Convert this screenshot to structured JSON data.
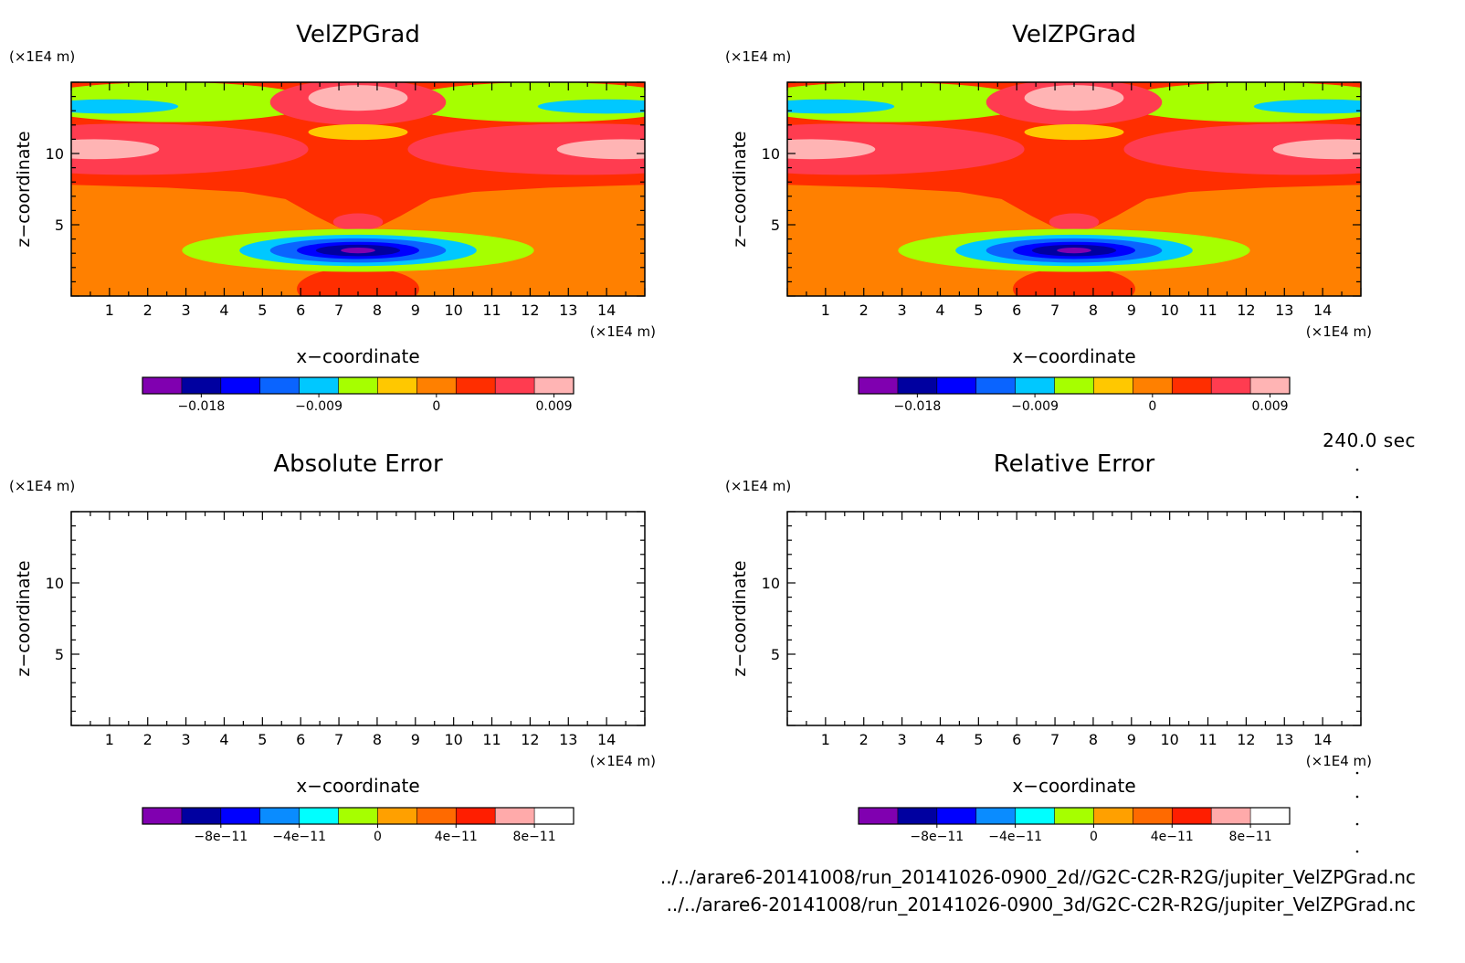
{
  "time_label": "240.0 sec",
  "files": [
    "../../arare6-20141008/run_20141026-0900_2d//G2C-C2R-R2G/jupiter_VelZPGrad.nc",
    "../../arare6-20141008/run_20141026-0900_3d/G2C-C2R-R2G/jupiter_VelZPGrad.nc"
  ],
  "chart_data": [
    {
      "type": "heatmap",
      "title": "VelZPGrad",
      "xlabel": "x−coordinate",
      "ylabel": "z−coordinate",
      "x_unit": "(×1E4 m)",
      "y_unit": "(×1E4 m)",
      "xlim": [
        0,
        15
      ],
      "ylim": [
        0,
        15
      ],
      "x_ticks": [
        1,
        2,
        3,
        4,
        5,
        6,
        7,
        8,
        9,
        10,
        11,
        12,
        13,
        14
      ],
      "y_ticks": [
        5,
        10
      ],
      "colorbar": {
        "levels": [
          -0.0225,
          -0.0195,
          -0.0165,
          -0.0135,
          -0.0105,
          -0.0075,
          -0.0045,
          -0.0015,
          0.0015,
          0.0045,
          0.0075,
          0.0105
        ],
        "tick_values": [
          -0.018,
          -0.009,
          0,
          0.009
        ],
        "tick_labels": [
          "−0.018",
          "−0.009",
          "0",
          "0.009"
        ],
        "colors": [
          "#8000b0",
          "#0000a0",
          "#0000ff",
          "#0a64ff",
          "#00c8ff",
          "#a6ff00",
          "#ffc800",
          "#ff8000",
          "#ff2e00",
          "#ff3c50",
          "#ffb4b4"
        ]
      },
      "contours": [
        {
          "shape": "rect",
          "x": [
            0,
            15
          ],
          "z": [
            0,
            15
          ],
          "value": 0
        },
        {
          "shape": "poly",
          "points": [
            [
              0,
              15
            ],
            [
              0,
              7.8
            ],
            [
              2.5,
              7.6
            ],
            [
              4.5,
              7.3
            ],
            [
              5.6,
              6.8
            ],
            [
              6.4,
              5.6
            ],
            [
              7,
              4.8
            ],
            [
              7.5,
              4.6
            ],
            [
              8,
              4.8
            ],
            [
              8.6,
              5.6
            ],
            [
              9.4,
              6.8
            ],
            [
              10.5,
              7.3
            ],
            [
              12.5,
              7.6
            ],
            [
              15,
              7.8
            ],
            [
              15,
              15
            ]
          ],
          "value": 0.003
        },
        {
          "shape": "ellipse",
          "cx": 7.5,
          "cz": 0.5,
          "rx": 1.6,
          "rz": 1.5,
          "value": 0.003
        },
        {
          "shape": "ellipse",
          "cx": 2.6,
          "cz": 13.6,
          "rx": 3.8,
          "rz": 1.4,
          "value": -0.006
        },
        {
          "shape": "ellipse",
          "cx": 12.4,
          "cz": 13.6,
          "rx": 3.8,
          "rz": 1.4,
          "value": -0.006
        },
        {
          "shape": "ellipse",
          "cx": 1.0,
          "cz": 13.3,
          "rx": 1.8,
          "rz": 0.5,
          "value": -0.009
        },
        {
          "shape": "ellipse",
          "cx": 14.0,
          "cz": 13.3,
          "rx": 1.8,
          "rz": 0.5,
          "value": -0.009
        },
        {
          "shape": "ellipse",
          "cx": 1.6,
          "cz": 10.3,
          "rx": 4.6,
          "rz": 1.8,
          "value": 0.006
        },
        {
          "shape": "ellipse",
          "cx": 13.4,
          "cz": 10.3,
          "rx": 4.6,
          "rz": 1.8,
          "value": 0.006
        },
        {
          "shape": "ellipse",
          "cx": 0.6,
          "cz": 10.3,
          "rx": 1.7,
          "rz": 0.7,
          "value": 0.009
        },
        {
          "shape": "ellipse",
          "cx": 14.4,
          "cz": 10.3,
          "rx": 1.7,
          "rz": 0.7,
          "value": 0.009
        },
        {
          "shape": "ellipse",
          "cx": 7.5,
          "cz": 13.6,
          "rx": 2.3,
          "rz": 1.6,
          "value": 0.006
        },
        {
          "shape": "ellipse",
          "cx": 7.5,
          "cz": 13.9,
          "rx": 1.3,
          "rz": 0.9,
          "value": 0.009
        },
        {
          "shape": "ellipse",
          "cx": 7.5,
          "cz": 14.0,
          "rx": 0.45,
          "rz": 0.25,
          "value": 0.012
        },
        {
          "shape": "ellipse",
          "cx": 7.5,
          "cz": 11.5,
          "rx": 1.3,
          "rz": 0.55,
          "value": -0.003
        },
        {
          "shape": "ellipse",
          "cx": 7.5,
          "cz": 5.2,
          "rx": 0.65,
          "rz": 0.6,
          "value": 0.006
        },
        {
          "shape": "ellipse",
          "cx": 7.5,
          "cz": 3.2,
          "rx": 4.6,
          "rz": 1.5,
          "value": -0.006
        },
        {
          "shape": "ellipse",
          "cx": 7.5,
          "cz": 3.2,
          "rx": 3.1,
          "rz": 1.1,
          "value": -0.009
        },
        {
          "shape": "ellipse",
          "cx": 7.5,
          "cz": 3.2,
          "rx": 2.3,
          "rz": 0.85,
          "value": -0.012
        },
        {
          "shape": "ellipse",
          "cx": 7.5,
          "cz": 3.2,
          "rx": 1.6,
          "rz": 0.6,
          "value": -0.015
        },
        {
          "shape": "ellipse",
          "cx": 7.5,
          "cz": 3.2,
          "rx": 1.1,
          "rz": 0.4,
          "value": -0.018
        },
        {
          "shape": "ellipse",
          "cx": 7.5,
          "cz": 3.2,
          "rx": 0.45,
          "rz": 0.2,
          "value": -0.021
        }
      ]
    },
    {
      "type": "heatmap",
      "title": "VelZPGrad",
      "xlabel": "x−coordinate",
      "ylabel": "z−coordinate",
      "x_unit": "(×1E4 m)",
      "y_unit": "(×1E4 m)",
      "xlim": [
        0,
        15
      ],
      "ylim": [
        0,
        15
      ],
      "x_ticks": [
        1,
        2,
        3,
        4,
        5,
        6,
        7,
        8,
        9,
        10,
        11,
        12,
        13,
        14
      ],
      "y_ticks": [
        5,
        10
      ],
      "same_field_as": 0,
      "colorbar": {
        "levels": [
          -0.0225,
          -0.0195,
          -0.0165,
          -0.0135,
          -0.0105,
          -0.0075,
          -0.0045,
          -0.0015,
          0.0015,
          0.0045,
          0.0075,
          0.0105
        ],
        "tick_values": [
          -0.018,
          -0.009,
          0,
          0.009
        ],
        "tick_labels": [
          "−0.018",
          "−0.009",
          "0",
          "0.009"
        ],
        "colors": [
          "#8000b0",
          "#0000a0",
          "#0000ff",
          "#0a64ff",
          "#00c8ff",
          "#a6ff00",
          "#ffc800",
          "#ff8000",
          "#ff2e00",
          "#ff3c50",
          "#ffb4b4"
        ]
      }
    },
    {
      "type": "heatmap",
      "title": "Absolute Error",
      "xlabel": "x−coordinate",
      "ylabel": "z−coordinate",
      "x_unit": "(×1E4 m)",
      "y_unit": "(×1E4 m)",
      "xlim": [
        0,
        15
      ],
      "ylim": [
        0,
        15
      ],
      "x_ticks": [
        1,
        2,
        3,
        4,
        5,
        6,
        7,
        8,
        9,
        10,
        11,
        12,
        13,
        14
      ],
      "y_ticks": [
        5,
        10
      ],
      "field": "empty",
      "colorbar": {
        "levels": [
          -1.2e-10,
          -1e-10,
          -8e-11,
          -6e-11,
          -4e-11,
          -2e-11,
          0,
          2e-11,
          4e-11,
          6e-11,
          8e-11,
          1e-10
        ],
        "tick_values": [
          -8e-11,
          -4e-11,
          0,
          4e-11,
          8e-11
        ],
        "tick_labels": [
          "−8e−11",
          "−4e−11",
          "0",
          "4e−11",
          "8e−11"
        ],
        "colors": [
          "#8000b0",
          "#0000a0",
          "#0000ff",
          "#0a8cff",
          "#00ffff",
          "#a6ff00",
          "#ffa000",
          "#ff6a00",
          "#ff1e00",
          "#ffaaaa"
        ]
      }
    },
    {
      "type": "heatmap",
      "title": "Relative Error",
      "xlabel": "x−coordinate",
      "ylabel": "z−coordinate",
      "x_unit": "(×1E4 m)",
      "y_unit": "(×1E4 m)",
      "xlim": [
        0,
        15
      ],
      "ylim": [
        0,
        15
      ],
      "x_ticks": [
        1,
        2,
        3,
        4,
        5,
        6,
        7,
        8,
        9,
        10,
        11,
        12,
        13,
        14
      ],
      "y_ticks": [
        5,
        10
      ],
      "field": "empty",
      "colorbar": {
        "levels": [
          -1.2e-10,
          -1e-10,
          -8e-11,
          -6e-11,
          -4e-11,
          -2e-11,
          0,
          2e-11,
          4e-11,
          6e-11,
          8e-11,
          1e-10
        ],
        "tick_values": [
          -8e-11,
          -4e-11,
          0,
          4e-11,
          8e-11
        ],
        "tick_labels": [
          "−8e−11",
          "−4e−11",
          "0",
          "4e−11",
          "8e−11"
        ],
        "colors": [
          "#8000b0",
          "#0000a0",
          "#0000ff",
          "#0a8cff",
          "#00ffff",
          "#a6ff00",
          "#ffa000",
          "#ff6a00",
          "#ff1e00",
          "#ffaaaa"
        ]
      }
    }
  ]
}
